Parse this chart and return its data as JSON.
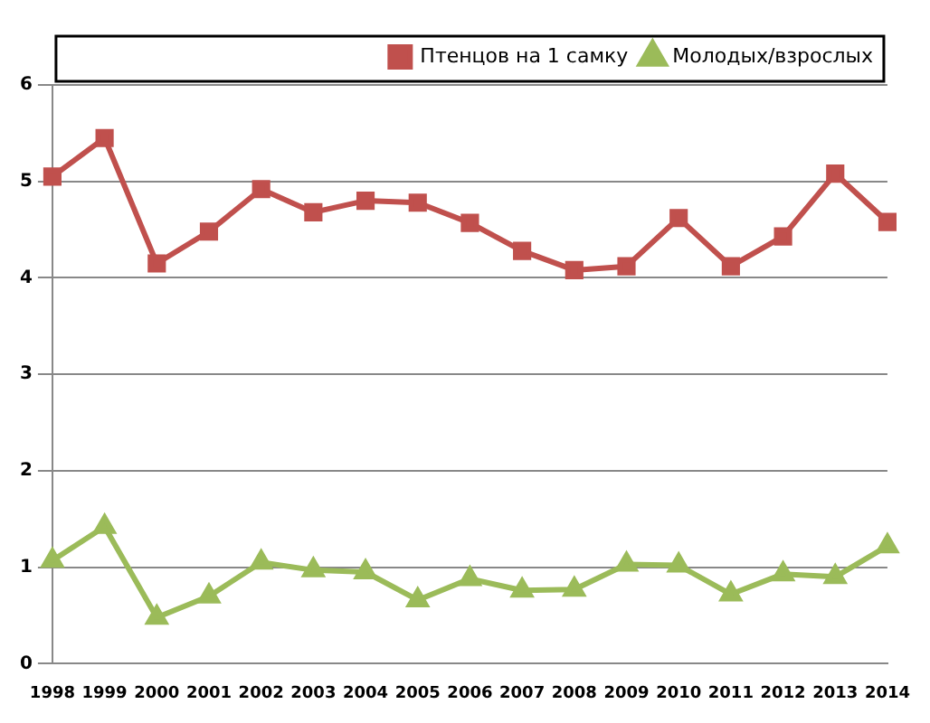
{
  "chart_data": {
    "type": "line",
    "categories": [
      "1998",
      "1999",
      "2000",
      "2001",
      "2002",
      "2003",
      "2004",
      "2005",
      "2006",
      "2007",
      "2008",
      "2009",
      "2010",
      "2011",
      "2012",
      "2013",
      "2014"
    ],
    "series": [
      {
        "name": "Птенцов на 1 самку",
        "color": "#c0504d",
        "marker": "square",
        "values": [
          5.05,
          5.45,
          4.15,
          4.48,
          4.92,
          4.68,
          4.8,
          4.78,
          4.57,
          4.28,
          4.08,
          4.12,
          4.62,
          4.12,
          4.43,
          5.08,
          4.58
        ]
      },
      {
        "name": "Молодых/взрослых",
        "color": "#9bbb59",
        "marker": "triangle",
        "values": [
          1.07,
          1.42,
          0.48,
          0.7,
          1.05,
          0.97,
          0.95,
          0.66,
          0.88,
          0.76,
          0.77,
          1.03,
          1.02,
          0.72,
          0.93,
          0.9,
          1.22
        ]
      }
    ],
    "ylim": [
      0,
      6
    ],
    "yticks": [
      0,
      1,
      2,
      3,
      4,
      5,
      6
    ],
    "grid": "y",
    "legend": "top right",
    "line_style": "solid"
  }
}
